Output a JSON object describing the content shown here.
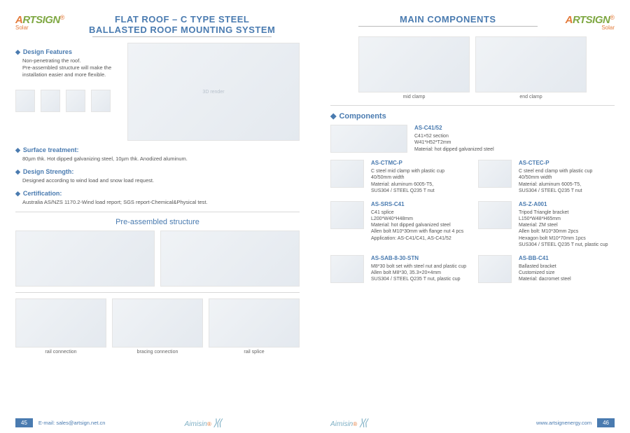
{
  "brand": {
    "a": "A",
    "rt": "RTSIGN",
    "solar": "Solar",
    "r": "®"
  },
  "left": {
    "title_l1": "FLAT ROOF – C TYPE STEEL",
    "title_l2": "BALLASTED ROOF MOUNTING SYSTEM",
    "features_head": "Design Features",
    "features_body": "Non-penetrating the roof.\nPre-assembled structure will make the installation easier and more flexible.",
    "surface_head": "Surface treatment:",
    "surface_body": "80µm thk. Hot dipped galvanizing steel, 10µm thk. Anodized aluminum.",
    "strength_head": "Design Strength:",
    "strength_body": "Designed according to wind load and snow load request.",
    "cert_head": "Certification:",
    "cert_body": "Australia AS/NZS 1170.2-Wind load report; SGS report-Chemical&Physical test.",
    "sub": "Pre-assembled structure",
    "thumbs": [
      "rail connection",
      "bracing connection",
      "rail splice"
    ],
    "page": "45",
    "email": "E-mail: sales@artsign.net.cn"
  },
  "right": {
    "title": "MAIN COMPONENTS",
    "clamps": [
      "mid clamp",
      "end clamp"
    ],
    "comp_head": "Components",
    "items": [
      {
        "code": "AS-C41/52",
        "desc": "C41×52 section\nW41*H52*T2mm\nMaterial: hot dipped galvanized steel",
        "wide": true
      },
      {
        "code": "AS-CTMC-P",
        "desc": "C steel mid clamp with plastic cup\n40/50mm width\nMaterial: aluminum 6005-T5,\nSUS304 / STEEL Q235 T nut"
      },
      {
        "code": "AS-CTEC-P",
        "desc": "C steel end clamp with plastic cup\n40/50mm width\nMaterial: aluminum 6005-T5,\nSUS304 / STEEL Q235 T nut"
      },
      {
        "code": "AS-SRS-C41",
        "desc": "C41 splice\nL200*W40*H48mm\nMaterial: hot dipped galvanized steel\nAllen bolt M10*30mm with flange nut 4 pcs\nApplication: AS-C41/C41, AS-C41/52"
      },
      {
        "code": "AS-Z-A001",
        "desc": "Tripod Triangle bracket\nL150*W48*H65mm\nMaterial: ZM steel\nAllen bolt: M10*30mm 2pcs\nHexagon bolt M10*70mm 1pcs\nSUS304 / STEEL Q235 T nut, plastic cup"
      },
      {
        "code": "AS-SAB-8-30-STN",
        "desc": "M8*30 bolt set with steel nut and plastic cup\nAllen bolt M8*30, 35.3×20×4mm\nSUS304 / STEEL Q235 T nut, plastic cup"
      },
      {
        "code": "AS-BB-C41",
        "desc": "Ballasted bracket\nCustomized size\nMaterial: dacromet steel"
      }
    ],
    "page": "46",
    "url": "www.artsignenergy.com"
  },
  "footer_brand": "Aimisin"
}
